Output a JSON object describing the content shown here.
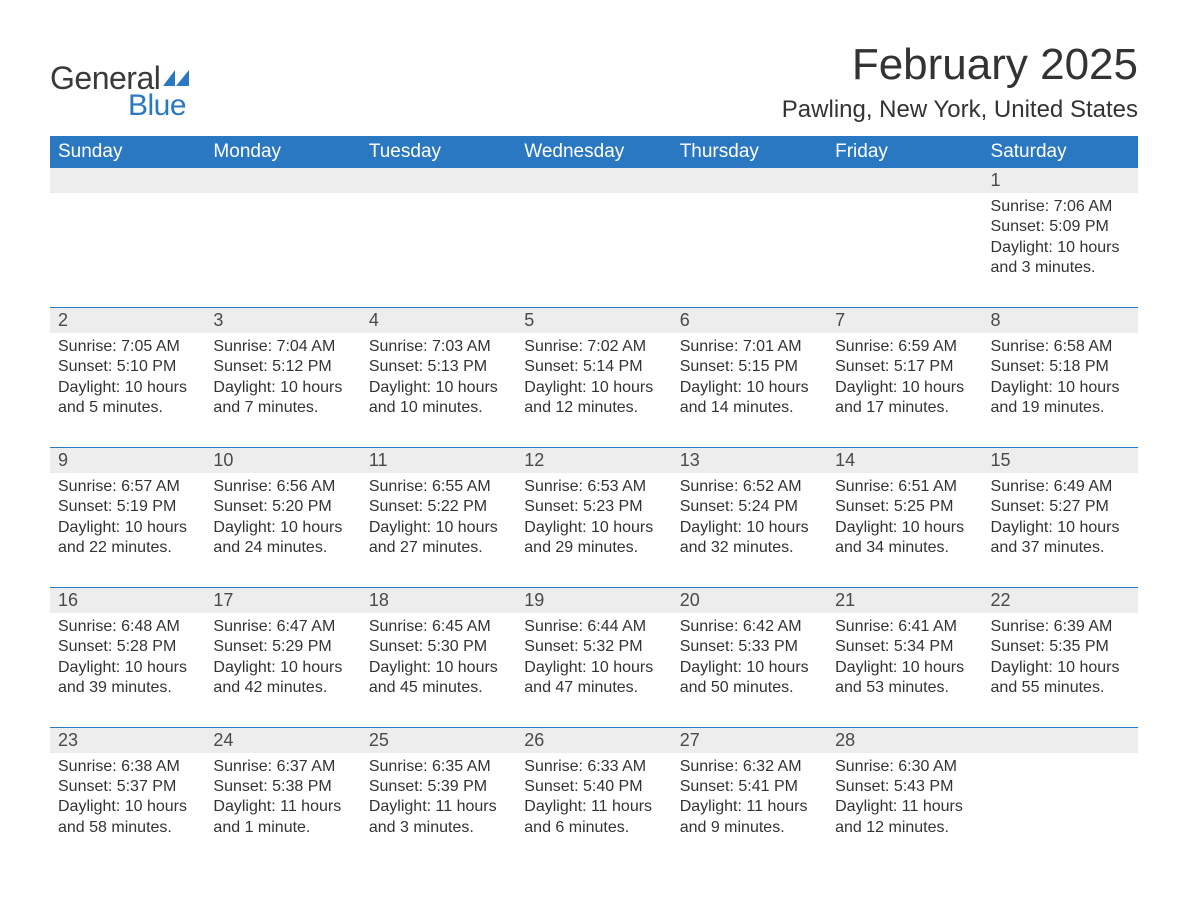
{
  "brand": {
    "word1": "General",
    "word2": "Blue",
    "flag_color": "#2b78c2",
    "word1_color": "#3a3a3a",
    "word2_color": "#2b78c2"
  },
  "title": {
    "month": "February 2025",
    "location": "Pawling, New York, United States"
  },
  "colors": {
    "header_bg": "#2b78c2",
    "header_text": "#ffffff",
    "daynum_bg": "#ededed",
    "text": "#333333",
    "rule": "#2b78c2",
    "page_bg": "#ffffff"
  },
  "days_of_week": [
    "Sunday",
    "Monday",
    "Tuesday",
    "Wednesday",
    "Thursday",
    "Friday",
    "Saturday"
  ],
  "weeks": [
    [
      null,
      null,
      null,
      null,
      null,
      null,
      {
        "n": "1",
        "sunrise": "7:06 AM",
        "sunset": "5:09 PM",
        "daylight": "10 hours and 3 minutes."
      }
    ],
    [
      {
        "n": "2",
        "sunrise": "7:05 AM",
        "sunset": "5:10 PM",
        "daylight": "10 hours and 5 minutes."
      },
      {
        "n": "3",
        "sunrise": "7:04 AM",
        "sunset": "5:12 PM",
        "daylight": "10 hours and 7 minutes."
      },
      {
        "n": "4",
        "sunrise": "7:03 AM",
        "sunset": "5:13 PM",
        "daylight": "10 hours and 10 minutes."
      },
      {
        "n": "5",
        "sunrise": "7:02 AM",
        "sunset": "5:14 PM",
        "daylight": "10 hours and 12 minutes."
      },
      {
        "n": "6",
        "sunrise": "7:01 AM",
        "sunset": "5:15 PM",
        "daylight": "10 hours and 14 minutes."
      },
      {
        "n": "7",
        "sunrise": "6:59 AM",
        "sunset": "5:17 PM",
        "daylight": "10 hours and 17 minutes."
      },
      {
        "n": "8",
        "sunrise": "6:58 AM",
        "sunset": "5:18 PM",
        "daylight": "10 hours and 19 minutes."
      }
    ],
    [
      {
        "n": "9",
        "sunrise": "6:57 AM",
        "sunset": "5:19 PM",
        "daylight": "10 hours and 22 minutes."
      },
      {
        "n": "10",
        "sunrise": "6:56 AM",
        "sunset": "5:20 PM",
        "daylight": "10 hours and 24 minutes."
      },
      {
        "n": "11",
        "sunrise": "6:55 AM",
        "sunset": "5:22 PM",
        "daylight": "10 hours and 27 minutes."
      },
      {
        "n": "12",
        "sunrise": "6:53 AM",
        "sunset": "5:23 PM",
        "daylight": "10 hours and 29 minutes."
      },
      {
        "n": "13",
        "sunrise": "6:52 AM",
        "sunset": "5:24 PM",
        "daylight": "10 hours and 32 minutes."
      },
      {
        "n": "14",
        "sunrise": "6:51 AM",
        "sunset": "5:25 PM",
        "daylight": "10 hours and 34 minutes."
      },
      {
        "n": "15",
        "sunrise": "6:49 AM",
        "sunset": "5:27 PM",
        "daylight": "10 hours and 37 minutes."
      }
    ],
    [
      {
        "n": "16",
        "sunrise": "6:48 AM",
        "sunset": "5:28 PM",
        "daylight": "10 hours and 39 minutes."
      },
      {
        "n": "17",
        "sunrise": "6:47 AM",
        "sunset": "5:29 PM",
        "daylight": "10 hours and 42 minutes."
      },
      {
        "n": "18",
        "sunrise": "6:45 AM",
        "sunset": "5:30 PM",
        "daylight": "10 hours and 45 minutes."
      },
      {
        "n": "19",
        "sunrise": "6:44 AM",
        "sunset": "5:32 PM",
        "daylight": "10 hours and 47 minutes."
      },
      {
        "n": "20",
        "sunrise": "6:42 AM",
        "sunset": "5:33 PM",
        "daylight": "10 hours and 50 minutes."
      },
      {
        "n": "21",
        "sunrise": "6:41 AM",
        "sunset": "5:34 PM",
        "daylight": "10 hours and 53 minutes."
      },
      {
        "n": "22",
        "sunrise": "6:39 AM",
        "sunset": "5:35 PM",
        "daylight": "10 hours and 55 minutes."
      }
    ],
    [
      {
        "n": "23",
        "sunrise": "6:38 AM",
        "sunset": "5:37 PM",
        "daylight": "10 hours and 58 minutes."
      },
      {
        "n": "24",
        "sunrise": "6:37 AM",
        "sunset": "5:38 PM",
        "daylight": "11 hours and 1 minute."
      },
      {
        "n": "25",
        "sunrise": "6:35 AM",
        "sunset": "5:39 PM",
        "daylight": "11 hours and 3 minutes."
      },
      {
        "n": "26",
        "sunrise": "6:33 AM",
        "sunset": "5:40 PM",
        "daylight": "11 hours and 6 minutes."
      },
      {
        "n": "27",
        "sunrise": "6:32 AM",
        "sunset": "5:41 PM",
        "daylight": "11 hours and 9 minutes."
      },
      {
        "n": "28",
        "sunrise": "6:30 AM",
        "sunset": "5:43 PM",
        "daylight": "11 hours and 12 minutes."
      },
      null
    ]
  ],
  "labels": {
    "sunrise": "Sunrise: ",
    "sunset": "Sunset: ",
    "daylight": "Daylight: "
  }
}
